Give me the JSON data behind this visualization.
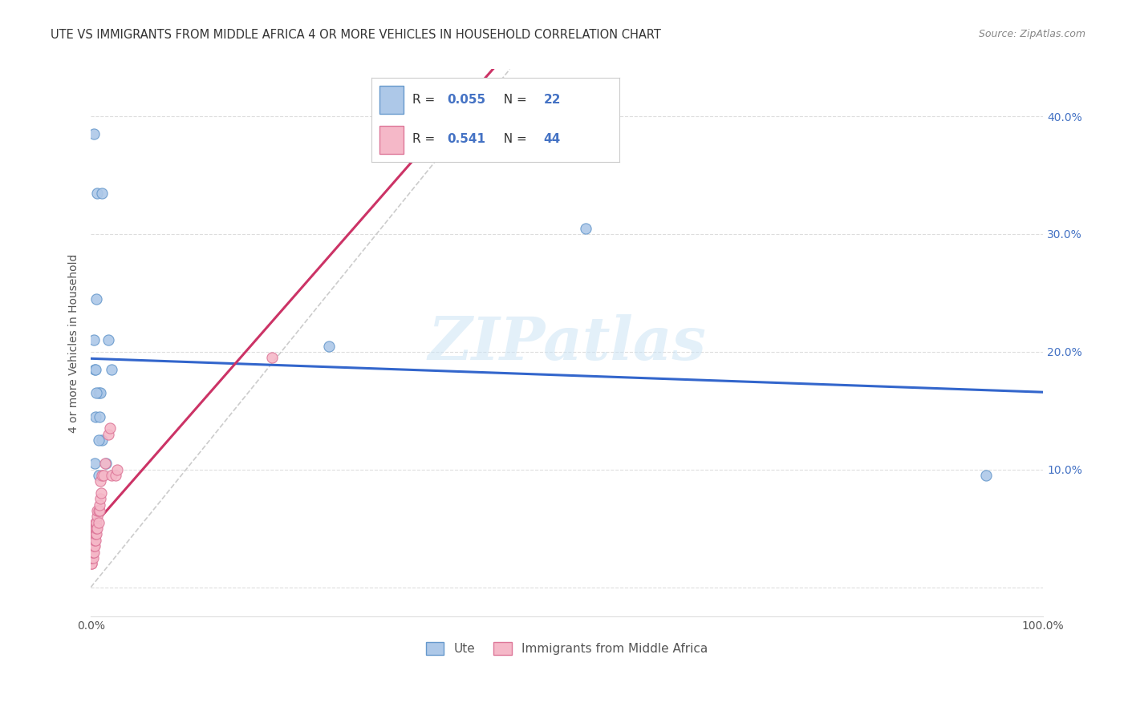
{
  "title": "UTE VS IMMIGRANTS FROM MIDDLE AFRICA 4 OR MORE VEHICLES IN HOUSEHOLD CORRELATION CHART",
  "source": "Source: ZipAtlas.com",
  "ylabel": "4 or more Vehicles in Household",
  "xlim": [
    0.0,
    1.0
  ],
  "ylim": [
    -0.025,
    0.44
  ],
  "blue_label": "Ute",
  "pink_label": "Immigrants from Middle Africa",
  "blue_R": "0.055",
  "blue_N": "22",
  "pink_R": "0.541",
  "pink_N": "44",
  "blue_color": "#adc8e8",
  "pink_color": "#f5b8c8",
  "blue_edge_color": "#6699cc",
  "pink_edge_color": "#dd7799",
  "trend_blue_color": "#3366cc",
  "trend_pink_color": "#cc3366",
  "diagonal_color": "#cccccc",
  "background_color": "#ffffff",
  "watermark": "ZIPatlas",
  "blue_x": [
    0.003,
    0.007,
    0.012,
    0.018,
    0.003,
    0.006,
    0.004,
    0.005,
    0.008,
    0.01,
    0.005,
    0.009,
    0.012,
    0.008,
    0.016,
    0.022,
    0.008,
    0.004,
    0.006,
    0.52,
    0.94,
    0.25
  ],
  "blue_y": [
    0.385,
    0.335,
    0.335,
    0.21,
    0.21,
    0.245,
    0.185,
    0.185,
    0.165,
    0.165,
    0.145,
    0.145,
    0.125,
    0.125,
    0.105,
    0.185,
    0.095,
    0.105,
    0.165,
    0.305,
    0.095,
    0.205
  ],
  "pink_x": [
    0.001,
    0.001,
    0.001,
    0.001,
    0.001,
    0.002,
    0.002,
    0.002,
    0.002,
    0.002,
    0.003,
    0.003,
    0.003,
    0.003,
    0.004,
    0.004,
    0.004,
    0.004,
    0.005,
    0.005,
    0.005,
    0.005,
    0.006,
    0.006,
    0.006,
    0.007,
    0.007,
    0.007,
    0.008,
    0.008,
    0.009,
    0.009,
    0.01,
    0.01,
    0.011,
    0.012,
    0.013,
    0.015,
    0.018,
    0.02,
    0.022,
    0.026,
    0.028,
    0.19
  ],
  "pink_y": [
    0.02,
    0.02,
    0.025,
    0.025,
    0.03,
    0.025,
    0.03,
    0.03,
    0.035,
    0.04,
    0.03,
    0.035,
    0.04,
    0.045,
    0.035,
    0.04,
    0.045,
    0.05,
    0.04,
    0.045,
    0.05,
    0.055,
    0.045,
    0.05,
    0.055,
    0.05,
    0.06,
    0.065,
    0.055,
    0.065,
    0.065,
    0.07,
    0.075,
    0.09,
    0.08,
    0.095,
    0.095,
    0.105,
    0.13,
    0.135,
    0.095,
    0.095,
    0.1,
    0.195
  ],
  "marker_size": 90,
  "ytick_color": "#4472c4",
  "xtick_color": "#555555"
}
